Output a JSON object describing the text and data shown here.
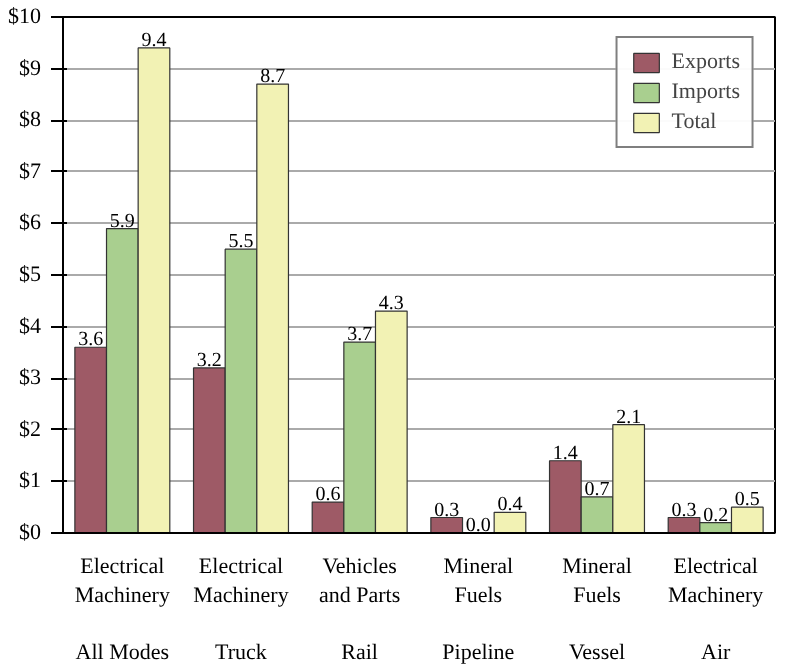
{
  "chart_data": {
    "type": "bar",
    "categories": [
      "Electrical\nMachinery\n\nAll Modes",
      "Electrical\nMachinery\n\nTruck",
      "Vehicles\nand Parts\n\nRail",
      "Mineral\nFuels\n\nPipeline",
      "Mineral\nFuels\n\nVessel",
      "Electrical\nMachinery\n\nAir"
    ],
    "series": [
      {
        "name": "Exports",
        "color": "#9e5a66",
        "values": [
          3.6,
          3.2,
          0.6,
          0.3,
          1.4,
          0.3
        ],
        "value_labels": [
          "3.6",
          "3.2",
          "0.6",
          "0.3",
          "1.4",
          "0.3"
        ]
      },
      {
        "name": "Imports",
        "color": "#a9cf8f",
        "values": [
          5.9,
          5.5,
          3.7,
          0.0,
          0.7,
          0.2
        ],
        "value_labels": [
          "5.9",
          "5.5",
          "3.7",
          "0.0",
          "0.7",
          "0.2"
        ]
      },
      {
        "name": "Total",
        "color": "#f2f2b4",
        "values": [
          9.4,
          8.7,
          4.3,
          0.4,
          2.1,
          0.5
        ],
        "value_labels": [
          "9.4",
          "8.7",
          "4.3",
          "0.4",
          "2.1",
          "0.5"
        ]
      }
    ],
    "ylim": [
      0,
      10
    ],
    "yticks": [
      {
        "value": 0,
        "label": "$0"
      },
      {
        "value": 1,
        "label": "$1"
      },
      {
        "value": 2,
        "label": "$2"
      },
      {
        "value": 3,
        "label": "$3"
      },
      {
        "value": 4,
        "label": "$4"
      },
      {
        "value": 5,
        "label": "$5"
      },
      {
        "value": 6,
        "label": "$6"
      },
      {
        "value": 7,
        "label": "$7"
      },
      {
        "value": 8,
        "label": "$8"
      },
      {
        "value": 9,
        "label": "$9"
      },
      {
        "value": 10,
        "label": "$10"
      }
    ],
    "grid": "y",
    "legend": "top right"
  }
}
